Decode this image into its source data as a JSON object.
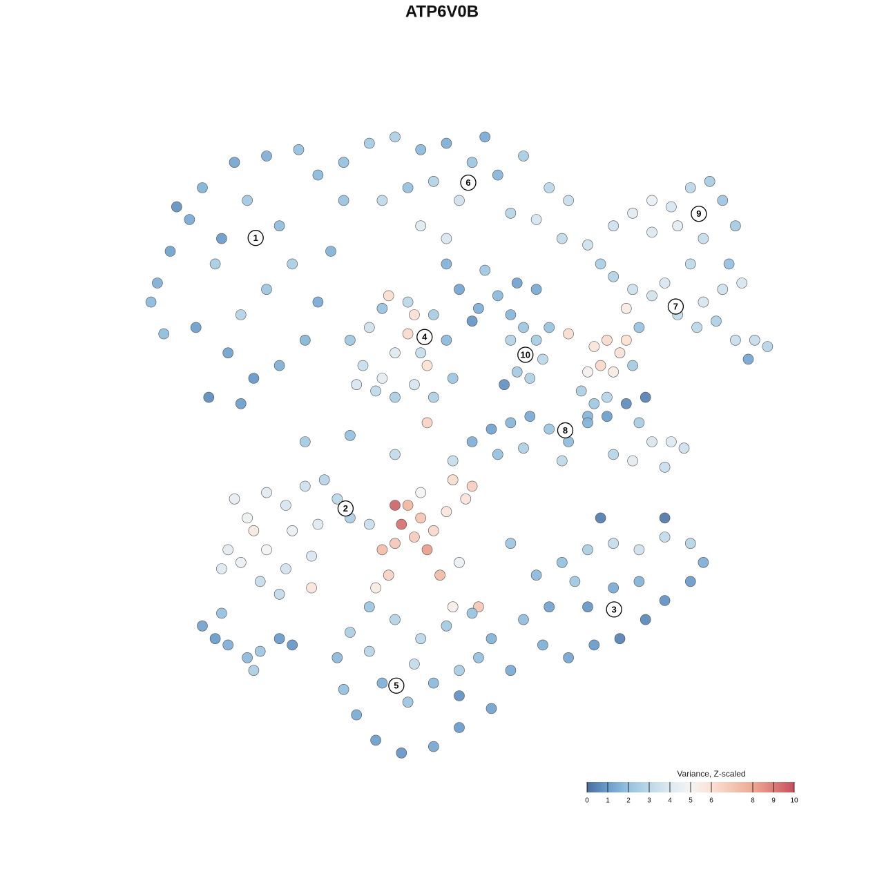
{
  "chart_data": {
    "type": "scatter",
    "title": "ATP6V0B",
    "xlim": [
      0,
      100
    ],
    "ylim": [
      0,
      100
    ],
    "colorbar": {
      "title": "Variance, Z-scaled",
      "lim": [
        0,
        10
      ],
      "ticks": [
        0,
        1,
        2,
        3,
        4,
        5,
        6,
        8,
        9,
        10
      ],
      "colorscale": [
        [
          0,
          "#4a6d9e"
        ],
        [
          1,
          "#6b9dcc"
        ],
        [
          2,
          "#96c2df"
        ],
        [
          3,
          "#bcd8e8"
        ],
        [
          4,
          "#dde9f1"
        ],
        [
          5,
          "#f5f4f3"
        ],
        [
          6,
          "#fbe1d4"
        ],
        [
          8,
          "#eda993"
        ],
        [
          9,
          "#dc7d7a"
        ],
        [
          10,
          "#c4515e"
        ]
      ]
    },
    "clusters": {
      "labels": [
        "1",
        "2",
        "3",
        "4",
        "5",
        "6",
        "7",
        "8",
        "9",
        "10"
      ],
      "x": [
        18.3,
        32.3,
        74.1,
        44.6,
        40.2,
        51.4,
        83.7,
        66.5,
        87.3,
        60.3
      ],
      "y": [
        82.1,
        39.5,
        23.6,
        66.5,
        11.6,
        90.8,
        71.3,
        51.8,
        85.9,
        63.7
      ]
    },
    "points": {
      "x": [
        3,
        5,
        2,
        8,
        10,
        15,
        20,
        25,
        28,
        12,
        16,
        20,
        14,
        18,
        22,
        26,
        9,
        30,
        32,
        22,
        17,
        13,
        6,
        28,
        24,
        11,
        16,
        4,
        32,
        36,
        40,
        44,
        48,
        52,
        56,
        60,
        64,
        67,
        62,
        58,
        50,
        46,
        42,
        38,
        54,
        66,
        70,
        72,
        48,
        44,
        74,
        77,
        80,
        83,
        86,
        89,
        91,
        93,
        88,
        84,
        80,
        86,
        92,
        94,
        74,
        77,
        80,
        84,
        87,
        90,
        93,
        96,
        98,
        95,
        88,
        82,
        76,
        78,
        91,
        71,
        73,
        75,
        72,
        74,
        76,
        70,
        77,
        67,
        33,
        35,
        37,
        40,
        43,
        46,
        49,
        48,
        46,
        42,
        38,
        36,
        40,
        44,
        43,
        42,
        45,
        38,
        39,
        34,
        50,
        53,
        56,
        59,
        62,
        52,
        58,
        48,
        54,
        58,
        60,
        62,
        63,
        61,
        59,
        57,
        64,
        60,
        69,
        71,
        73,
        70,
        52,
        55,
        58,
        61,
        64,
        67,
        70,
        73,
        76,
        79,
        78,
        80,
        83,
        85,
        82,
        77,
        74,
        56,
        60,
        66,
        49,
        45,
        33,
        26,
        40,
        15,
        17,
        20,
        23,
        26,
        29,
        31,
        28,
        24,
        20,
        16,
        14,
        19,
        23,
        27,
        22,
        18,
        27,
        13,
        33,
        40,
        41,
        42,
        44,
        43,
        45,
        40,
        38,
        46,
        48,
        51,
        52,
        49,
        47,
        50,
        39,
        37,
        44,
        36,
        53,
        49,
        62,
        66,
        70,
        74,
        78,
        82,
        86,
        88,
        86,
        82,
        79,
        75,
        71,
        67,
        63,
        60,
        64,
        70,
        74,
        78,
        68,
        58,
        82,
        72,
        31,
        33,
        36,
        40,
        44,
        48,
        52,
        55,
        58,
        55,
        50,
        46,
        41,
        37,
        34,
        32,
        38,
        42,
        46,
        50,
        43,
        36,
        50,
        53,
        10,
        12,
        14,
        17,
        19,
        18,
        22,
        13,
        24
      ],
      "y": [
        75,
        80,
        72,
        85,
        90,
        94,
        95,
        96,
        92,
        78,
        70,
        74,
        64,
        60,
        62,
        66,
        68,
        80,
        88,
        84,
        88,
        82,
        87,
        72,
        78,
        57,
        56,
        67,
        94,
        97,
        98,
        96,
        97,
        94,
        92,
        95,
        90,
        88,
        85,
        86,
        88,
        91,
        90,
        88,
        98,
        82,
        81,
        78,
        82,
        84,
        84,
        86,
        88,
        87,
        90,
        91,
        88,
        84,
        82,
        84,
        83,
        78,
        78,
        75,
        76,
        74,
        73,
        70,
        68,
        69,
        66,
        66,
        65,
        63,
        72,
        75,
        71,
        68,
        74,
        65,
        66,
        64,
        62,
        61,
        66,
        61,
        62,
        67,
        66,
        62,
        58,
        57,
        59,
        57,
        60,
        66,
        70,
        72,
        71,
        68,
        64,
        64,
        70,
        67,
        62,
        60,
        73,
        59,
        74,
        71,
        73,
        75,
        74,
        69,
        70,
        78,
        77,
        66,
        68,
        66,
        63,
        60,
        61,
        59,
        68,
        64,
        58,
        56,
        57,
        54,
        50,
        52,
        53,
        54,
        52,
        50,
        53,
        54,
        56,
        57,
        53,
        50,
        50,
        49,
        46,
        47,
        48,
        48,
        49,
        47,
        47,
        53,
        51,
        50,
        48,
        41,
        38,
        42,
        40,
        43,
        44,
        41,
        37,
        36,
        33,
        31,
        33,
        28,
        30,
        32,
        26,
        36,
        27,
        30,
        38,
        40,
        37,
        40,
        38,
        35,
        33,
        34,
        33,
        36,
        39,
        41,
        43,
        44,
        29,
        31,
        29,
        27,
        42,
        37,
        24,
        24,
        29,
        31,
        33,
        34,
        33,
        35,
        34,
        31,
        28,
        25,
        22,
        19,
        18,
        16,
        18,
        22,
        24,
        24,
        27,
        28,
        28,
        34,
        38,
        38,
        16,
        20,
        24,
        22,
        19,
        21,
        23,
        19,
        14,
        8,
        5,
        2,
        1,
        3,
        7,
        11,
        12,
        9,
        12,
        14,
        15,
        17,
        10,
        16,
        21,
        19,
        18,
        16,
        17,
        14,
        19,
        23,
        18
      ],
      "values": [
        1.5,
        1.2,
        1.8,
        1.4,
        1.6,
        1.3,
        1.5,
        2,
        1.8,
        2.5,
        2.8,
        2.2,
        1.2,
        0.9,
        1.5,
        1.7,
        1.1,
        1.6,
        2.1,
        1.9,
        2.3,
        1.0,
        0.8,
        1.4,
        2.6,
        0.7,
        1.1,
        1.9,
        2,
        2.4,
        2.7,
        1.8,
        1.5,
        2.2,
        1.7,
        2.5,
        3.0,
        3.4,
        3.8,
        2.9,
        3.6,
        2.8,
        2.0,
        3.1,
        1.4,
        3.2,
        3.5,
        2.6,
        3.9,
        4.1,
        3.5,
        4.2,
        4.5,
        3.9,
        3.0,
        2.5,
        2.2,
        2.4,
        3.3,
        4.3,
        4.0,
        3.1,
        2.0,
        3.8,
        2.8,
        3.5,
        3.7,
        3.2,
        3.0,
        2.7,
        3.4,
        3.3,
        2.9,
        1.3,
        3.8,
        3.9,
        5.5,
        2.1,
        3.6,
        5.8,
        6.2,
        5.9,
        6.3,
        5.5,
        6.0,
        5.2,
        2.4,
        6.1,
        2.3,
        3.4,
        3.1,
        2.6,
        3.8,
        2.7,
        2.2,
        1.8,
        2.5,
        3.0,
        2.1,
        3.6,
        4.1,
        3.3,
        6.0,
        6.2,
        6.0,
        4.3,
        6.1,
        3.9,
        1.3,
        1.5,
        1.8,
        1.2,
        1.4,
        0.9,
        1.7,
        1.6,
        2.3,
        2.8,
        2.2,
        2.5,
        3.0,
        2.7,
        2.4,
        0.8,
        2.1,
        3.2,
        2.6,
        2.3,
        2.9,
        1.7,
        1.5,
        1.2,
        1.7,
        1.4,
        2.2,
        1.9,
        1.6,
        1.1,
        0.7,
        0.5,
        2.5,
        3.8,
        4.0,
        3.6,
        3.4,
        4.3,
        2.9,
        2.0,
        2.7,
        3.1,
        3.3,
        6.5,
        2.0,
        2.4,
        3.2,
        4.4,
        4.7,
        4.2,
        3.8,
        3.5,
        2.9,
        3.0,
        4.1,
        4.6,
        4.9,
        4.5,
        4.3,
        3.3,
        3.7,
        3.9,
        3.2,
        5.6,
        5.8,
        4.1,
        2.6,
        9.5,
        9.2,
        7.5,
        7.0,
        6.8,
        8.2,
        6.9,
        7.2,
        6.3,
        5.7,
        5.8,
        6.6,
        6.1,
        7.3,
        4.6,
        6.5,
        5.5,
        5.0,
        3.4,
        6.9,
        5.3,
        1.8,
        2.0,
        2.6,
        3.3,
        3.6,
        3.2,
        2.9,
        1.5,
        1.0,
        0.8,
        0.6,
        0.5,
        1.0,
        1.3,
        1.5,
        1.9,
        1.2,
        0.9,
        1.4,
        1.6,
        2.3,
        2.2,
        0.3,
        0.4,
        1.8,
        2.6,
        2.2,
        2.8,
        3.0,
        2.4,
        2.1,
        1.6,
        1.4,
        1.2,
        1.0,
        1.3,
        0.9,
        1.1,
        1.4,
        2.0,
        1.5,
        2.2,
        1.8,
        2.5,
        3.2,
        2.9,
        0.8,
        2.0,
        1.2,
        1.0,
        1.5,
        1.8,
        2.2,
        2.6,
        1.0,
        2.0,
        0.9
      ]
    }
  }
}
